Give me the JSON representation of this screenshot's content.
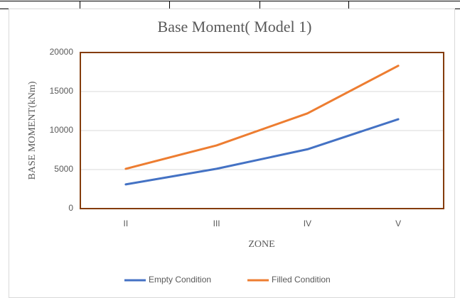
{
  "chart_data": {
    "type": "line",
    "title": "Base Moment( Model 1)",
    "x_label": "ZONE",
    "y_label": "BASE MOMENT(kNm)",
    "categories": [
      "II",
      "III",
      "IV",
      "V"
    ],
    "series": [
      {
        "name": "Empty Condition",
        "color": "#4472c4",
        "values": [
          3100,
          5100,
          7600,
          11450
        ]
      },
      {
        "name": "Filled Condition",
        "color": "#ed7d31",
        "values": [
          5100,
          8100,
          12200,
          18300
        ]
      }
    ],
    "ylim": [
      0,
      20000
    ],
    "yticks": [
      0,
      5000,
      10000,
      15000,
      20000
    ],
    "grid": true,
    "legend": "bottom"
  }
}
